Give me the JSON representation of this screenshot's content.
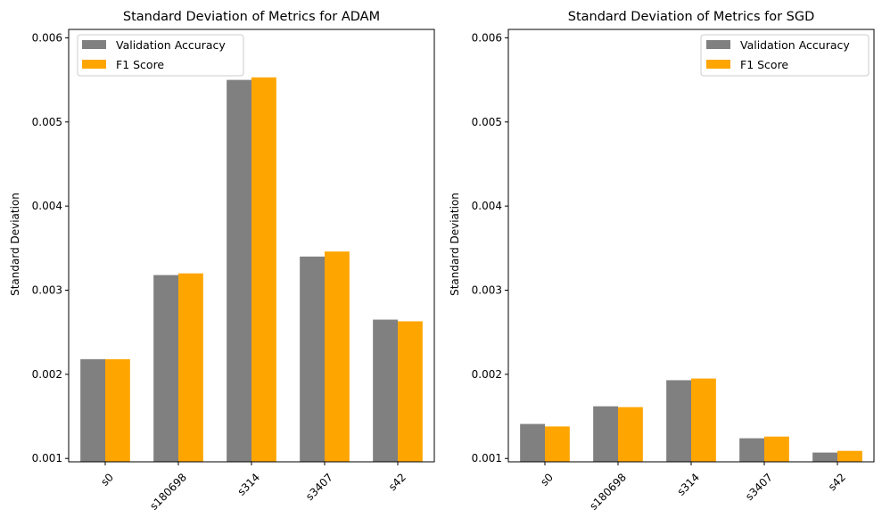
{
  "chart_data": [
    {
      "type": "bar",
      "title": "Standard Deviation of Metrics for ADAM",
      "xlabel": "",
      "ylabel": "Standard Deviation",
      "categories": [
        "s0",
        "s180698",
        "s314",
        "s3407",
        "s42"
      ],
      "ylim": [
        0.00096,
        0.0061
      ],
      "yticks": [
        "0.001",
        "0.002",
        "0.003",
        "0.004",
        "0.005",
        "0.006"
      ],
      "yticks_values": [
        0.001,
        0.002,
        0.003,
        0.004,
        0.005,
        0.006
      ],
      "legend_position": "upper-left",
      "grid": false,
      "series": [
        {
          "name": "Validation Accuracy",
          "color": "#808080",
          "values": [
            0.00218,
            0.00318,
            0.0055,
            0.0034,
            0.00265
          ]
        },
        {
          "name": "F1 Score",
          "color": "#ffa500",
          "values": [
            0.00218,
            0.0032,
            0.00553,
            0.00346,
            0.00263
          ]
        }
      ]
    },
    {
      "type": "bar",
      "title": "Standard Deviation of Metrics for SGD",
      "xlabel": "",
      "ylabel": "Standard Deviation",
      "categories": [
        "s0",
        "s180698",
        "s314",
        "s3407",
        "s42"
      ],
      "ylim": [
        0.00096,
        0.0061
      ],
      "yticks": [
        "0.001",
        "0.002",
        "0.003",
        "0.004",
        "0.005",
        "0.006"
      ],
      "yticks_values": [
        0.001,
        0.002,
        0.003,
        0.004,
        0.005,
        0.006
      ],
      "legend_position": "upper-right",
      "grid": false,
      "series": [
        {
          "name": "Validation Accuracy",
          "color": "#808080",
          "values": [
            0.00141,
            0.00162,
            0.00193,
            0.00124,
            0.00107
          ]
        },
        {
          "name": "F1 Score",
          "color": "#ffa500",
          "values": [
            0.00138,
            0.00161,
            0.00195,
            0.00126,
            0.00109
          ]
        }
      ]
    }
  ]
}
